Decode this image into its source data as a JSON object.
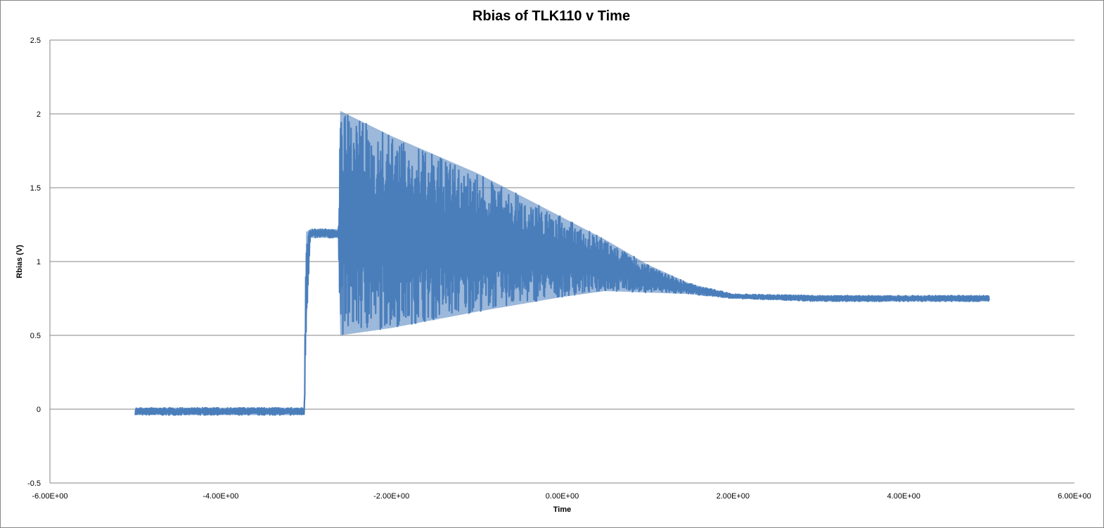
{
  "chart_data": {
    "type": "line",
    "title": "Rbias of TLK110 v Time",
    "xlabel": "Time",
    "ylabel": "Rbias  (V)",
    "xlim": [
      -6,
      6
    ],
    "ylim": [
      -0.5,
      2.5
    ],
    "x_ticks": [
      -6,
      -4,
      -2,
      0,
      2,
      4,
      6
    ],
    "x_tick_labels": [
      "-6.00E+00",
      "-4.00E+00",
      "-2.00E+00",
      "0.00E+00",
      "2.00E+00",
      "4.00E+00",
      "6.00E+00"
    ],
    "y_ticks": [
      -0.5,
      0,
      0.5,
      1,
      1.5,
      2,
      2.5
    ],
    "y_tick_labels": [
      "-0.5",
      "0",
      "0.5",
      "1",
      "1.5",
      "2",
      "2.5"
    ],
    "grid": "horizontal",
    "legend": "none",
    "series_color": "#4A7EBB",
    "envelope_points": [
      {
        "x": -5.0,
        "min": -0.04,
        "max": 0.01
      },
      {
        "x": -3.02,
        "min": -0.04,
        "max": 0.01
      },
      {
        "x": -3.0,
        "min": 0.5,
        "max": 1.2
      },
      {
        "x": -2.95,
        "min": 1.16,
        "max": 1.22
      },
      {
        "x": -2.62,
        "min": 1.16,
        "max": 1.22
      },
      {
        "x": -2.6,
        "min": 0.5,
        "max": 2.02
      },
      {
        "x": -2.0,
        "min": 0.55,
        "max": 1.85
      },
      {
        "x": -1.0,
        "min": 0.66,
        "max": 1.6
      },
      {
        "x": 0.0,
        "min": 0.76,
        "max": 1.3
      },
      {
        "x": 0.5,
        "min": 0.8,
        "max": 1.15
      },
      {
        "x": 1.0,
        "min": 0.79,
        "max": 0.98
      },
      {
        "x": 1.5,
        "min": 0.78,
        "max": 0.85
      },
      {
        "x": 2.0,
        "min": 0.75,
        "max": 0.78
      },
      {
        "x": 3.0,
        "min": 0.73,
        "max": 0.77
      },
      {
        "x": 4.0,
        "min": 0.73,
        "max": 0.77
      },
      {
        "x": 5.0,
        "min": 0.73,
        "max": 0.77
      }
    ]
  }
}
